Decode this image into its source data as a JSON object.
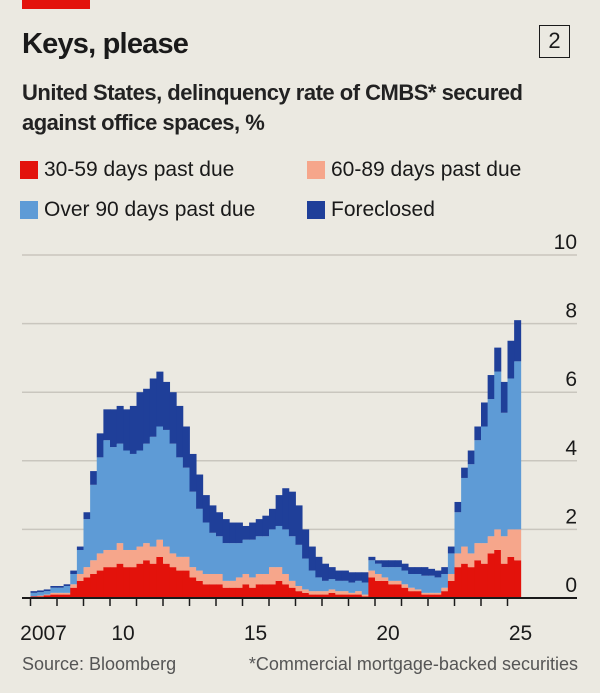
{
  "header": {
    "title": "Keys, please",
    "chart_number": "2",
    "subtitle": "United States, delinquency rate of CMBS* secured against office spaces, %"
  },
  "footer": {
    "source": "Source: Bloomberg",
    "footnote": "*Commercial mortgage-backed securities"
  },
  "colors": {
    "d30_59": "#e3120b",
    "d60_89": "#f6a68b",
    "d90plus": "#5e9bd6",
    "foreclosed": "#1f3f99",
    "background": "#ebe9e1",
    "accent": "#e3120b"
  },
  "chart_data": {
    "type": "bar",
    "stacked": true,
    "title": "Keys, please",
    "subtitle": "United States, delinquency rate of CMBS* secured against office spaces, %",
    "xlabel": "",
    "ylabel": "%",
    "ylim": [
      0,
      10
    ],
    "yticks": [
      0,
      2,
      4,
      6,
      8,
      10
    ],
    "ytick_labels": [
      "0",
      "2",
      "4",
      "6",
      "8",
      "10"
    ],
    "y_axis_side": "right",
    "xlim": [
      2007.0,
      2026.0
    ],
    "xticks": [
      2007,
      2008,
      2009,
      2010,
      2011,
      2012,
      2013,
      2014,
      2015,
      2016,
      2017,
      2018,
      2019,
      2020,
      2021,
      2022,
      2023,
      2024,
      2025
    ],
    "xtick_labels": [
      {
        "year": 2007,
        "label": "2007"
      },
      {
        "year": 2010,
        "label": "10"
      },
      {
        "year": 2015,
        "label": "15"
      },
      {
        "year": 2020,
        "label": "20"
      },
      {
        "year": 2025,
        "label": "25"
      }
    ],
    "grid": true,
    "legend_position": "top",
    "frequency": "quarterly (estimated)",
    "x": [
      2007.25,
      2007.5,
      2007.75,
      2008.0,
      2008.25,
      2008.5,
      2008.75,
      2009.0,
      2009.25,
      2009.5,
      2009.75,
      2010.0,
      2010.25,
      2010.5,
      2010.75,
      2011.0,
      2011.25,
      2011.5,
      2011.75,
      2012.0,
      2012.25,
      2012.5,
      2012.75,
      2013.0,
      2013.25,
      2013.5,
      2013.75,
      2014.0,
      2014.25,
      2014.5,
      2014.75,
      2015.0,
      2015.25,
      2015.5,
      2015.75,
      2016.0,
      2016.25,
      2016.5,
      2016.75,
      2017.0,
      2017.25,
      2017.5,
      2017.75,
      2018.0,
      2018.25,
      2018.5,
      2018.75,
      2019.0,
      2019.25,
      2019.5,
      2019.75,
      2020.0,
      2020.25,
      2020.5,
      2020.75,
      2021.0,
      2021.25,
      2021.5,
      2021.75,
      2022.0,
      2022.25,
      2022.5,
      2022.75,
      2023.0,
      2023.25,
      2023.5,
      2023.75,
      2024.0,
      2024.25,
      2024.5,
      2024.75,
      2025.0,
      2025.25,
      2025.5
    ],
    "series": [
      {
        "name": "30-59 days past due",
        "color": "#e3120b",
        "values": [
          0.05,
          0.05,
          0.08,
          0.1,
          0.1,
          0.1,
          0.3,
          0.5,
          0.6,
          0.7,
          0.8,
          0.9,
          0.9,
          1.0,
          0.9,
          0.9,
          1.0,
          1.1,
          1.0,
          1.2,
          1.0,
          0.9,
          0.8,
          0.8,
          0.6,
          0.5,
          0.4,
          0.4,
          0.4,
          0.3,
          0.3,
          0.3,
          0.4,
          0.3,
          0.4,
          0.4,
          0.4,
          0.5,
          0.4,
          0.3,
          0.2,
          0.15,
          0.1,
          0.1,
          0.1,
          0.15,
          0.1,
          0.1,
          0.1,
          0.1,
          0.05,
          0.6,
          0.5,
          0.5,
          0.4,
          0.4,
          0.3,
          0.2,
          0.2,
          0.1,
          0.1,
          0.1,
          0.2,
          0.5,
          0.9,
          1.0,
          0.9,
          1.1,
          1.0,
          1.3,
          1.4,
          1.0,
          1.2,
          1.1
        ]
      },
      {
        "name": "60-89 days past due",
        "color": "#f6a68b",
        "values": [
          0.0,
          0.02,
          0.02,
          0.05,
          0.05,
          0.05,
          0.1,
          0.2,
          0.3,
          0.4,
          0.5,
          0.5,
          0.5,
          0.6,
          0.5,
          0.5,
          0.5,
          0.5,
          0.5,
          0.5,
          0.5,
          0.4,
          0.4,
          0.4,
          0.3,
          0.3,
          0.3,
          0.3,
          0.3,
          0.2,
          0.2,
          0.3,
          0.3,
          0.3,
          0.3,
          0.3,
          0.5,
          0.4,
          0.3,
          0.2,
          0.15,
          0.1,
          0.1,
          0.1,
          0.1,
          0.1,
          0.1,
          0.1,
          0.05,
          0.1,
          0.05,
          0.2,
          0.2,
          0.1,
          0.1,
          0.1,
          0.1,
          0.1,
          0.05,
          0.05,
          0.05,
          0.05,
          0.1,
          0.2,
          0.4,
          0.5,
          0.4,
          0.5,
          0.6,
          0.5,
          0.6,
          0.8,
          0.8,
          0.9
        ]
      },
      {
        "name": "Over 90 days past due",
        "color": "#5e9bd6",
        "values": [
          0.1,
          0.1,
          0.1,
          0.15,
          0.15,
          0.2,
          0.3,
          0.7,
          1.4,
          2.2,
          2.8,
          3.2,
          3.0,
          2.9,
          2.9,
          2.8,
          2.8,
          2.9,
          3.2,
          3.3,
          3.4,
          3.2,
          2.9,
          2.6,
          2.2,
          1.8,
          1.5,
          1.2,
          1.1,
          1.1,
          1.1,
          1.0,
          1.0,
          1.1,
          1.1,
          1.1,
          1.1,
          1.2,
          1.3,
          1.3,
          1.2,
          0.9,
          0.6,
          0.4,
          0.3,
          0.3,
          0.3,
          0.3,
          0.3,
          0.3,
          0.35,
          0.3,
          0.3,
          0.3,
          0.4,
          0.4,
          0.4,
          0.4,
          0.45,
          0.5,
          0.5,
          0.45,
          0.4,
          0.6,
          1.2,
          2.0,
          2.6,
          3.0,
          3.4,
          4.0,
          4.6,
          3.6,
          4.4,
          4.9
        ]
      },
      {
        "name": "Foreclosed",
        "color": "#1f3f99",
        "values": [
          0.05,
          0.05,
          0.05,
          0.05,
          0.05,
          0.05,
          0.1,
          0.1,
          0.2,
          0.4,
          0.7,
          0.9,
          1.1,
          1.1,
          1.2,
          1.4,
          1.7,
          1.6,
          1.7,
          1.6,
          1.4,
          1.5,
          1.5,
          1.2,
          1.1,
          1.0,
          0.8,
          0.8,
          0.7,
          0.7,
          0.6,
          0.6,
          0.4,
          0.5,
          0.5,
          0.6,
          0.6,
          0.9,
          1.2,
          1.3,
          1.15,
          0.85,
          0.7,
          0.6,
          0.5,
          0.35,
          0.3,
          0.3,
          0.3,
          0.25,
          0.3,
          0.1,
          0.1,
          0.2,
          0.2,
          0.2,
          0.2,
          0.2,
          0.2,
          0.25,
          0.2,
          0.2,
          0.2,
          0.2,
          0.3,
          0.3,
          0.4,
          0.4,
          0.7,
          0.7,
          0.7,
          0.9,
          1.1,
          1.2
        ]
      }
    ]
  },
  "legend": [
    {
      "label": "30-59 days past due",
      "color": "#e3120b"
    },
    {
      "label": "60-89 days past due",
      "color": "#f6a68b"
    },
    {
      "label": "Over 90 days past due",
      "color": "#5e9bd6"
    },
    {
      "label": "Foreclosed",
      "color": "#1f3f99"
    }
  ]
}
